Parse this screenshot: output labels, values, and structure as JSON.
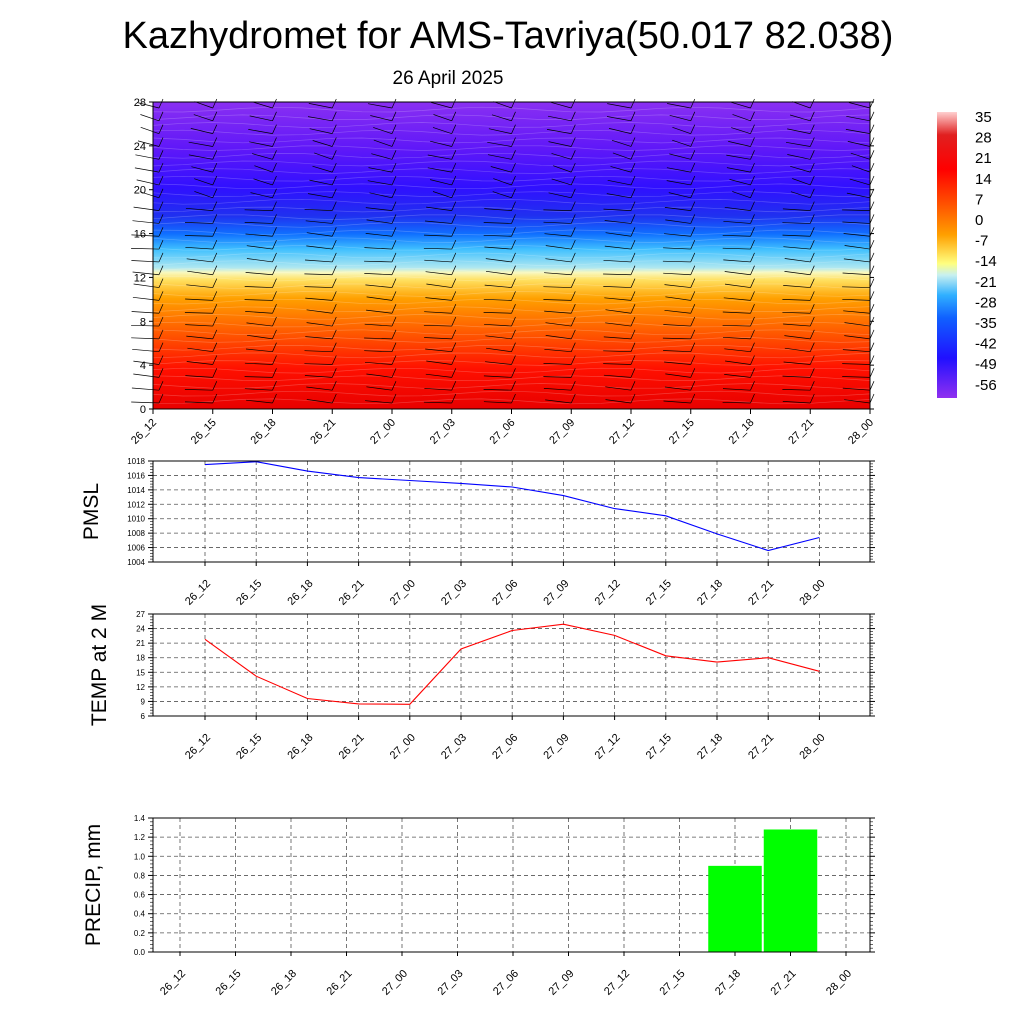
{
  "header": {
    "title": "Kazhydromet for AMS-Tavriya(50.017 82.038)",
    "subtitle": "26 April 2025"
  },
  "colorbar": {
    "labels": [
      "35",
      "28",
      "21",
      "14",
      "7",
      "0",
      "-7",
      "-14",
      "-21",
      "-28",
      "-35",
      "-42",
      "-49",
      "-56"
    ]
  },
  "chart_data": [
    {
      "type": "heatmap",
      "title": "",
      "ylim": [
        0,
        28
      ],
      "yticks": [
        "0",
        "4",
        "8",
        "12",
        "16",
        "20",
        "24",
        "28"
      ],
      "categories": [
        "26_12",
        "26_15",
        "26_18",
        "26_21",
        "27_00",
        "27_03",
        "27_06",
        "27_09",
        "27_12",
        "27_15",
        "27_18",
        "27_21",
        "28_00"
      ],
      "legend": "right colorbar",
      "colormap": [
        "#ffd0d0",
        "#ff0000",
        "#ff8000",
        "#ffff80",
        "#c0f0f0",
        "#00a0ff",
        "#2020ff",
        "#9030f0"
      ]
    },
    {
      "type": "line",
      "ylabel": "PMSL",
      "categories": [
        "26_12",
        "26_15",
        "26_18",
        "26_21",
        "27_00",
        "27_03",
        "27_06",
        "27_09",
        "27_12",
        "27_15",
        "27_18",
        "27_21",
        "28_00"
      ],
      "ylim": [
        1004,
        1018
      ],
      "yticks": [
        "1004",
        "1006",
        "1008",
        "1010",
        "1012",
        "1014",
        "1016",
        "1018"
      ],
      "series": [
        {
          "values": [
            1017.5,
            1017.9,
            1016.6,
            1015.7,
            1015.3,
            1014.9,
            1014.4,
            1013.2,
            1011.4,
            1010.4,
            1007.9,
            1005.6,
            1007.4
          ],
          "color": "#0000ff"
        }
      ],
      "grid": true
    },
    {
      "type": "line",
      "ylabel": "TEMP at 2 M",
      "categories": [
        "26_12",
        "26_15",
        "26_18",
        "26_21",
        "27_00",
        "27_03",
        "27_06",
        "27_09",
        "27_12",
        "27_15",
        "27_18",
        "27_21",
        "28_00"
      ],
      "ylim": [
        6,
        27
      ],
      "yticks": [
        "6",
        "9",
        "12",
        "15",
        "18",
        "21",
        "24",
        "27"
      ],
      "series": [
        {
          "values": [
            21.8,
            14.2,
            9.6,
            8.5,
            8.4,
            19.8,
            23.6,
            24.9,
            22.6,
            18.4,
            17.1,
            18.0,
            15.2
          ],
          "color": "#ff0000"
        }
      ],
      "grid": true
    },
    {
      "type": "bar",
      "ylabel": "PRECIP, mm",
      "categories": [
        "26_12",
        "26_15",
        "26_18",
        "26_21",
        "27_00",
        "27_03",
        "27_06",
        "27_09",
        "27_12",
        "27_15",
        "27_18",
        "27_21",
        "28_00"
      ],
      "ylim": [
        0,
        1.4
      ],
      "yticks": [
        "0.0",
        "0.2",
        "0.4",
        "0.6",
        "0.8",
        "1.0",
        "1.2",
        "1.4"
      ],
      "series": [
        {
          "values": [
            0,
            0,
            0,
            0,
            0,
            0,
            0,
            0,
            0,
            0,
            0.9,
            1.28,
            0
          ],
          "color": "#00ff00"
        }
      ],
      "grid": true
    }
  ]
}
